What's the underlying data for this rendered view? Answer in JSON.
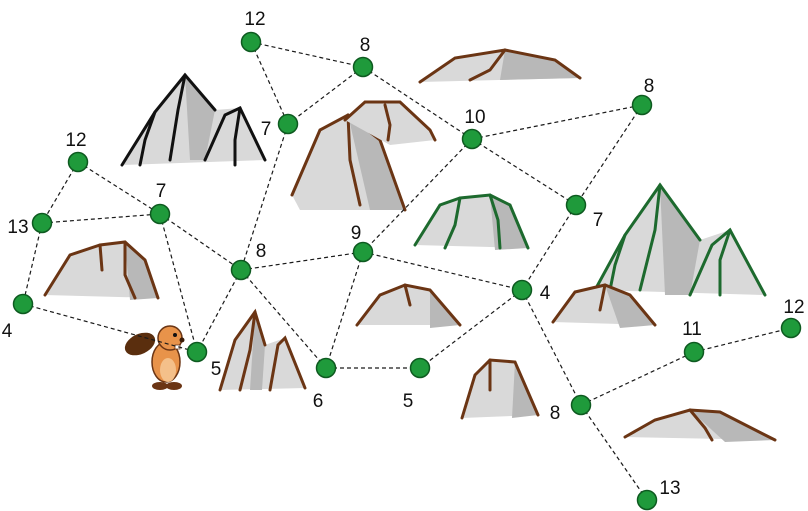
{
  "nodes": [
    {
      "id": "n1",
      "value": "12"
    },
    {
      "id": "n2",
      "value": "8"
    },
    {
      "id": "n3",
      "value": "7"
    },
    {
      "id": "n4",
      "value": "10"
    },
    {
      "id": "n5",
      "value": "8"
    },
    {
      "id": "n6",
      "value": "12"
    },
    {
      "id": "n7",
      "value": "13"
    },
    {
      "id": "n8",
      "value": "7"
    },
    {
      "id": "n9",
      "value": "7"
    },
    {
      "id": "n10",
      "value": "8"
    },
    {
      "id": "n11",
      "value": "9"
    },
    {
      "id": "n12",
      "value": "4"
    },
    {
      "id": "n13",
      "value": "4"
    },
    {
      "id": "n14",
      "value": "5"
    },
    {
      "id": "n15",
      "value": "6"
    },
    {
      "id": "n16",
      "value": "5"
    },
    {
      "id": "n17",
      "value": "8"
    },
    {
      "id": "n18",
      "value": "11"
    },
    {
      "id": "n19",
      "value": "12"
    },
    {
      "id": "n20",
      "value": "13"
    }
  ],
  "edges": [
    [
      "n1",
      "n2"
    ],
    [
      "n1",
      "n3"
    ],
    [
      "n2",
      "n3"
    ],
    [
      "n2",
      "n4"
    ],
    [
      "n4",
      "n5"
    ],
    [
      "n4",
      "n9"
    ],
    [
      "n5",
      "n9"
    ],
    [
      "n4",
      "n11"
    ],
    [
      "n3",
      "n10"
    ],
    [
      "n6",
      "n7"
    ],
    [
      "n6",
      "n8"
    ],
    [
      "n7",
      "n8"
    ],
    [
      "n7",
      "n13"
    ],
    [
      "n8",
      "n10"
    ],
    [
      "n8",
      "n14"
    ],
    [
      "n10",
      "n14"
    ],
    [
      "n10",
      "n11"
    ],
    [
      "n10",
      "n15"
    ],
    [
      "n11",
      "n15"
    ],
    [
      "n11",
      "n12"
    ],
    [
      "n9",
      "n12"
    ],
    [
      "n12",
      "n16"
    ],
    [
      "n15",
      "n16"
    ],
    [
      "n12",
      "n17"
    ],
    [
      "n17",
      "n18"
    ],
    [
      "n18",
      "n19"
    ],
    [
      "n17",
      "n20"
    ],
    [
      "n13",
      "n14"
    ]
  ]
}
